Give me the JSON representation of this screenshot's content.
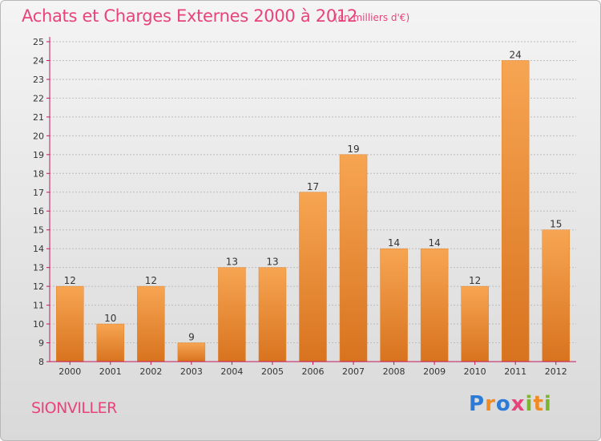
{
  "header": {
    "title": "Achats et Charges Externes 2000 à 2012",
    "subtitle": "(en milliers d'€)"
  },
  "footer": {
    "place": "SIONVILLER",
    "logo_text": "Proxiti",
    "logo_colors": [
      "#2c7bd6",
      "#f08a24",
      "#2c7bd6",
      "#e8437a",
      "#7cb62f",
      "#f08a24",
      "#7cb62f"
    ]
  },
  "colors": {
    "bar_top": "#f7a552",
    "bar_bottom": "#d8731f",
    "axis": "#c2185b",
    "grid": "#bdbdbd"
  },
  "chart_data": {
    "type": "bar",
    "title": "Achats et Charges Externes 2000 à 2012",
    "subtitle": "(en milliers d'€)",
    "categories": [
      "2000",
      "2001",
      "2002",
      "2003",
      "2004",
      "2005",
      "2006",
      "2007",
      "2008",
      "2009",
      "2010",
      "2011",
      "2012"
    ],
    "values": [
      12,
      10,
      12,
      9,
      13,
      13,
      17,
      19,
      14,
      14,
      12,
      24,
      15
    ],
    "ylim": [
      8,
      25
    ],
    "yticks": [
      8,
      9,
      10,
      11,
      12,
      13,
      14,
      15,
      16,
      17,
      18,
      19,
      20,
      21,
      22,
      23,
      24,
      25
    ],
    "grid": true,
    "xlabel": "",
    "ylabel": ""
  }
}
